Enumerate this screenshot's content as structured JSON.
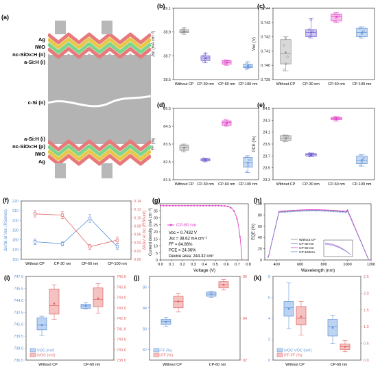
{
  "colors": {
    "gray": "#8c8c8c",
    "violet": "#6f5bd0",
    "magenta": "#e040c8",
    "blue": "#5a8fd6",
    "red": "#e06060",
    "blue_light": "#bcd3f2",
    "pink_light": "#f5c2c2",
    "layer_red": "#e8797a",
    "layer_yellow": "#e8c84a",
    "layer_green": "#7fd48b",
    "silicon": "#b3b3b3"
  },
  "panel_a": {
    "label": "(a)",
    "top_layers": [
      "Ag",
      "IWO",
      "nc-SiOx:H (n)",
      "a-Si:H (i)"
    ],
    "middle_layer": "c-Si (n)",
    "bottom_layers": [
      "a-Si:H (i)",
      "nc-SiOx:H (p)",
      "IWO",
      "Ag"
    ]
  },
  "chart_data": [
    {
      "panel": "(b)",
      "type": "box",
      "categories": [
        "Without CP",
        "CP-30 nm",
        "CP-60 nm",
        "CP-100 nm"
      ],
      "ylabel": "Jsc (mA cm⁻²)",
      "ylim": [
        38.5,
        39.1
      ],
      "yticks": [
        "38.5",
        "38.7",
        "38.9",
        "39.1"
      ],
      "boxes": [
        {
          "q1": 38.895,
          "med": 38.905,
          "q3": 38.92,
          "lo": 38.88,
          "hi": 38.935,
          "mean": 38.905,
          "points": [
            38.89,
            38.9,
            38.91,
            38.92,
            38.93
          ]
        },
        {
          "q1": 38.66,
          "med": 38.68,
          "q3": 38.7,
          "lo": 38.64,
          "hi": 38.72,
          "mean": 38.68,
          "points": [
            38.65,
            38.67,
            38.69,
            38.7,
            38.72
          ]
        },
        {
          "q1": 38.63,
          "med": 38.645,
          "q3": 38.66,
          "lo": 38.62,
          "hi": 38.665,
          "mean": 38.645,
          "points": [
            38.63,
            38.64,
            38.65,
            38.66
          ]
        },
        {
          "q1": 38.6,
          "med": 38.61,
          "q3": 38.63,
          "lo": 38.59,
          "hi": 38.65,
          "mean": 38.615,
          "points": [
            38.59,
            38.6,
            38.62,
            38.64
          ]
        }
      ]
    },
    {
      "panel": "(c)",
      "type": "box",
      "categories": [
        "Without CP",
        "CP-30 nm",
        "CP-60 nm",
        "CP-100 nm"
      ],
      "ylabel": "Voc (V)",
      "ylim": [
        0.739,
        0.744
      ],
      "yticks": [
        "0.739",
        "0.740",
        "0.741",
        "0.742",
        "0.743",
        "0.744"
      ],
      "boxes": [
        {
          "q1": 0.7401,
          "med": 0.7408,
          "q3": 0.7418,
          "lo": 0.7396,
          "hi": 0.742,
          "mean": 0.7409,
          "points": [
            0.7397,
            0.7401,
            0.7406,
            0.7414,
            0.7419
          ]
        },
        {
          "q1": 0.742,
          "med": 0.7423,
          "q3": 0.7425,
          "lo": 0.7419,
          "hi": 0.7433,
          "mean": 0.7423,
          "points": [
            0.742,
            0.7421,
            0.7424,
            0.7425,
            0.7432
          ]
        },
        {
          "q1": 0.7431,
          "med": 0.7434,
          "q3": 0.7436,
          "lo": 0.743,
          "hi": 0.7437,
          "mean": 0.7434,
          "points": [
            0.7431,
            0.7433,
            0.7435,
            0.7436
          ]
        },
        {
          "q1": 0.742,
          "med": 0.7423,
          "q3": 0.7426,
          "lo": 0.7419,
          "hi": 0.7427,
          "mean": 0.7423,
          "points": [
            0.742,
            0.7422,
            0.7424,
            0.7426
          ]
        }
      ]
    },
    {
      "panel": "(d)",
      "type": "box",
      "categories": [
        "Without CP",
        "CP-30 nm",
        "CP-60 nm",
        "CP-100 nm"
      ],
      "ylabel": "FF (%)",
      "ylim": [
        81.5,
        85.5
      ],
      "yticks": [
        "81.5",
        "82.5",
        "83.5",
        "84.5",
        "85.5"
      ],
      "boxes": [
        {
          "q1": 83.15,
          "med": 83.3,
          "q3": 83.45,
          "lo": 83.05,
          "hi": 83.5,
          "mean": 83.3,
          "points": [
            83.1,
            83.25,
            83.35,
            83.45
          ]
        },
        {
          "q1": 82.55,
          "med": 82.62,
          "q3": 82.68,
          "lo": 82.5,
          "hi": 82.7,
          "mean": 82.62,
          "points": [
            82.55,
            82.6,
            82.65,
            82.68
          ]
        },
        {
          "q1": 84.55,
          "med": 84.7,
          "q3": 84.8,
          "lo": 84.5,
          "hi": 84.85,
          "mean": 84.68,
          "points": [
            84.55,
            84.65,
            84.75,
            84.85
          ]
        },
        {
          "q1": 82.2,
          "med": 82.45,
          "q3": 82.75,
          "lo": 81.9,
          "hi": 82.85,
          "mean": 82.45,
          "points": [
            81.95,
            82.3,
            82.6,
            82.8
          ]
        }
      ]
    },
    {
      "panel": "(e)",
      "type": "box",
      "categories": [
        "Without CP",
        "CP-30 nm",
        "CP-60 nm",
        "CP-100 nm"
      ],
      "ylabel": "PCE (%)",
      "ylim": [
        23.3,
        24.5
      ],
      "yticks": [
        "23.3",
        "23.5",
        "23.7",
        "23.9",
        "24.1",
        "24.3",
        "24.5"
      ],
      "boxes": [
        {
          "q1": 23.96,
          "med": 24.0,
          "q3": 24.04,
          "lo": 23.94,
          "hi": 24.05,
          "mean": 24.0,
          "points": [
            23.95,
            23.99,
            24.02,
            24.04
          ]
        },
        {
          "q1": 23.7,
          "med": 23.72,
          "q3": 23.74,
          "lo": 23.69,
          "hi": 23.75,
          "mean": 23.72,
          "points": [
            23.7,
            23.72,
            23.73,
            23.74
          ]
        },
        {
          "q1": 24.31,
          "med": 24.33,
          "q3": 24.35,
          "lo": 24.29,
          "hi": 24.36,
          "mean": 24.33,
          "points": [
            24.3,
            24.32,
            24.34,
            24.35
          ]
        },
        {
          "q1": 23.57,
          "med": 23.62,
          "q3": 23.7,
          "lo": 23.53,
          "hi": 23.72,
          "mean": 23.63,
          "points": [
            23.54,
            23.6,
            23.66,
            23.71
          ]
        }
      ]
    },
    {
      "panel": "(f)",
      "type": "line",
      "categories": [
        "Without CP",
        "CP-30 nm",
        "CP-60 nm",
        "CP-100 nm"
      ],
      "ylabel_left": "ΔV/ΔI at Voc (RSeries)",
      "ylim_left": [
        160,
        220
      ],
      "yticks_left": [
        "160",
        "170",
        "180",
        "190",
        "200",
        "210",
        "220"
      ],
      "ylabel_right": "ΔI/ΔV at Isc (RShunt)",
      "ylim_right": [
        0.0,
        0.14
      ],
      "yticks_right": [
        "0.00",
        "0.02",
        "0.04",
        "0.06",
        "0.08",
        "0.10",
        "0.12",
        "0.14"
      ],
      "series": [
        {
          "axis": "left",
          "values": [
            178,
            176,
            202,
            173
          ],
          "errors": [
            3,
            2,
            4,
            3
          ]
        },
        {
          "axis": "right",
          "values": [
            0.109,
            0.106,
            0.03,
            0.046
          ],
          "errors": [
            0.008,
            0.008,
            0.006,
            0.007
          ]
        }
      ]
    },
    {
      "panel": "(g)",
      "type": "line",
      "xlabel": "Voltage (V)",
      "ylabel": "Current density (mA cm⁻²)",
      "xlim": [
        0.0,
        0.8
      ],
      "ylim": [
        0,
        40
      ],
      "xticks": [
        "0.0",
        "0.1",
        "0.2",
        "0.3",
        "0.4",
        "0.5",
        "0.6",
        "0.7",
        "0.8"
      ],
      "yticks": [
        "0",
        "5",
        "10",
        "15",
        "20",
        "25",
        "30",
        "35",
        "40"
      ],
      "series": [
        {
          "name": "CP-60 nm",
          "voc": 0.7432,
          "jsc": 38.62
        }
      ],
      "annotations": [
        "Voc = 0.7432 V",
        "Jsc = 38.62 mA cm⁻²",
        "FF = 84.86%",
        "PCE = 24.36%",
        "Device area: 244.32 cm²"
      ]
    },
    {
      "panel": "(h)",
      "type": "line",
      "xlabel": "Wavelength (nm)",
      "ylabel": "EQE (%)",
      "xlim": [
        300,
        1200
      ],
      "ylim": [
        0,
        100
      ],
      "xticks": [
        "400",
        "600",
        "800",
        "1000",
        "1200"
      ],
      "yticks": [
        "0",
        "20",
        "40",
        "60",
        "80",
        "100"
      ],
      "series": [
        {
          "name": "Without CP",
          "shift": 0
        },
        {
          "name": "CP-30 nm",
          "shift": 0.5
        },
        {
          "name": "CP-60 nm",
          "shift": 1.5
        },
        {
          "name": "CP-100nm",
          "shift": -1
        }
      ]
    },
    {
      "panel": "(i)",
      "type": "box",
      "categories": [
        "Without CP",
        "CP-60 nm"
      ],
      "ylim_left": [
        736.5,
        747.0
      ],
      "yticks_left": [
        "736.5",
        "738.0",
        "739.5",
        "741.0",
        "742.5",
        "744.0",
        "745.5",
        "747.0"
      ],
      "ylim_right": [
        738.0,
        746.0
      ],
      "yticks_right": [
        "738.0",
        "739.0",
        "740.0",
        "741.0",
        "742.0",
        "743.0",
        "744.0",
        "745.0",
        "746.0"
      ],
      "legend": [
        "VOC (mV)",
        "iVOC (mV)"
      ],
      "boxes_left": [
        {
          "q1": 740.3,
          "med": 740.9,
          "q3": 741.8,
          "lo": 739.6,
          "hi": 742.0,
          "mean": 740.9
        },
        {
          "q1": 743.0,
          "med": 743.3,
          "q3": 743.5,
          "lo": 742.9,
          "hi": 743.7,
          "mean": 743.3
        }
      ],
      "boxes_right": [
        {
          "q1": 742.4,
          "med": 743.2,
          "q3": 744.8,
          "lo": 741.9,
          "hi": 745.2,
          "mean": 743.4
        },
        {
          "q1": 743.1,
          "med": 743.8,
          "q3": 744.9,
          "lo": 742.5,
          "hi": 745.3,
          "mean": 743.9
        }
      ]
    },
    {
      "panel": "(j)",
      "type": "box",
      "categories": [
        "Without CP",
        "CP-60 nm"
      ],
      "ylim_left": [
        81.5,
        85.5
      ],
      "yticks_left": [
        "82",
        "83",
        "84",
        "85"
      ],
      "ylim_right": [
        82,
        86
      ],
      "yticks_right": [
        "82",
        "84",
        "86"
      ],
      "legend": [
        "FF (%)",
        "iFF (%)"
      ],
      "boxes_left": [
        {
          "q1": 83.2,
          "med": 83.35,
          "q3": 83.45,
          "lo": 83.1,
          "hi": 83.55,
          "mean": 83.33
        },
        {
          "q1": 84.55,
          "med": 84.65,
          "q3": 84.75,
          "lo": 84.5,
          "hi": 84.8,
          "mean": 84.65
        }
      ],
      "boxes_right": [
        {
          "q1": 84.5,
          "med": 84.8,
          "q3": 85.05,
          "lo": 84.3,
          "hi": 85.2,
          "mean": 84.8
        },
        {
          "q1": 85.45,
          "med": 85.6,
          "q3": 85.75,
          "lo": 85.35,
          "hi": 85.85,
          "mean": 85.6
        }
      ]
    },
    {
      "panel": "(k)",
      "type": "box",
      "categories": [
        "Without CP",
        "CP-60 nm"
      ],
      "ylim_left": [
        0,
        8
      ],
      "yticks_left": [
        "0",
        "2",
        "4",
        "6",
        "8"
      ],
      "ylim_right": [
        0.0,
        2.5
      ],
      "yticks_right": [
        "0.0",
        "0.5",
        "1.0",
        "1.5",
        "2.0",
        "2.5"
      ],
      "legend": [
        "iVOC-VOC (mV)",
        "iFF-FF (%)"
      ],
      "boxes_left": [
        {
          "q1": 4.2,
          "med": 5.0,
          "q3": 5.6,
          "lo": 3.0,
          "hi": 7.4,
          "mean": 4.9
        },
        {
          "q1": 2.3,
          "med": 3.2,
          "q3": 3.9,
          "lo": 1.6,
          "hi": 4.3,
          "mean": 3.1
        }
      ],
      "boxes_right": [
        {
          "q1": 1.05,
          "med": 1.25,
          "q3": 1.6,
          "lo": 0.75,
          "hi": 1.75,
          "mean": 1.3
        },
        {
          "q1": 0.32,
          "med": 0.4,
          "q3": 0.48,
          "lo": 0.25,
          "hi": 0.58,
          "mean": 0.4
        }
      ]
    }
  ]
}
